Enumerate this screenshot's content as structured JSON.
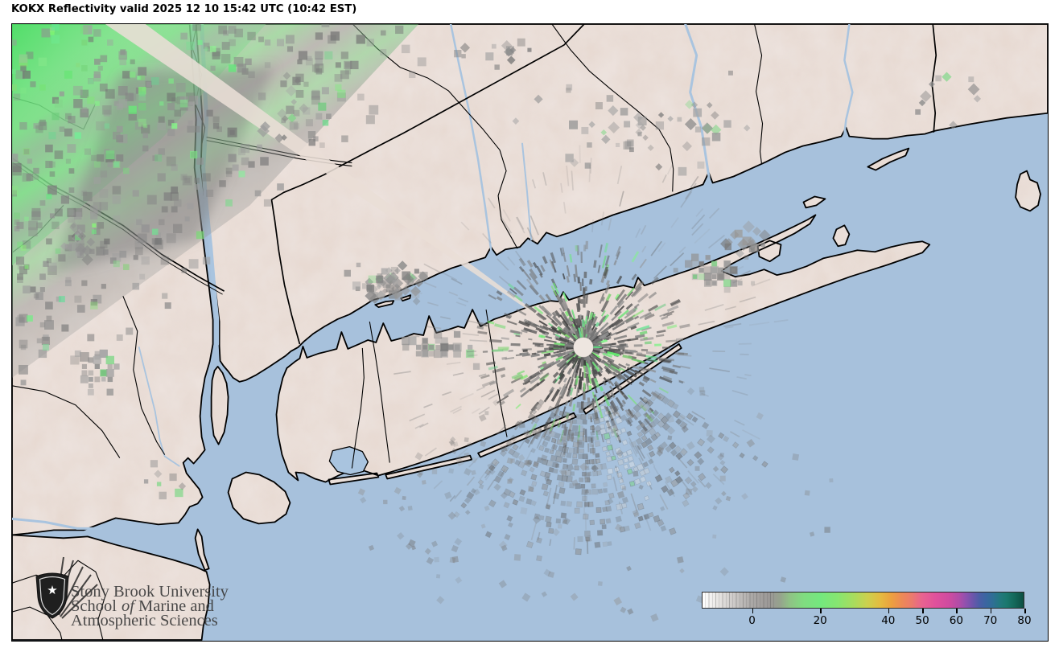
{
  "title": "KOKX Reflectivity valid 2025 12 10 15:42 UTC (10:42 EST)",
  "radar": {
    "station": "KOKX",
    "product": "Reflectivity",
    "valid_utc": "2025 12 10 15:42 UTC",
    "valid_local": "10:42 EST"
  },
  "logo": {
    "line1": "Stony Brook University",
    "line2_pre": "School",
    "line2_italic": "of",
    "line2_post": "Marine and",
    "line3": "Atmospheric Sciences"
  },
  "colorbar": {
    "min": -14.8,
    "max": 80,
    "ticks": [
      0,
      20,
      40,
      50,
      60,
      70,
      80
    ],
    "stops": [
      {
        "v": -14.8,
        "c": "#ffffff"
      },
      {
        "v": -11,
        "c": "#eceae8"
      },
      {
        "v": -5,
        "c": "#c9c6c4"
      },
      {
        "v": 0,
        "c": "#aaa7a5"
      },
      {
        "v": 5,
        "c": "#9b9896"
      },
      {
        "v": 8,
        "c": "#96a28d"
      },
      {
        "v": 11,
        "c": "#8fc285"
      },
      {
        "v": 15,
        "c": "#80dc80"
      },
      {
        "v": 20,
        "c": "#74e87e"
      },
      {
        "v": 25,
        "c": "#86e671"
      },
      {
        "v": 30,
        "c": "#a9dc5d"
      },
      {
        "v": 34,
        "c": "#cdd04d"
      },
      {
        "v": 38,
        "c": "#e6b93f"
      },
      {
        "v": 41,
        "c": "#eca03f"
      },
      {
        "v": 44,
        "c": "#ec8a55"
      },
      {
        "v": 47,
        "c": "#eb7a6d"
      },
      {
        "v": 50,
        "c": "#e86390"
      },
      {
        "v": 54,
        "c": "#e0519c"
      },
      {
        "v": 58,
        "c": "#cf4ba0"
      },
      {
        "v": 61,
        "c": "#b04da8"
      },
      {
        "v": 63,
        "c": "#8e51af"
      },
      {
        "v": 65,
        "c": "#6d55ab"
      },
      {
        "v": 67,
        "c": "#4b5ea6"
      },
      {
        "v": 69,
        "c": "#3a66a0"
      },
      {
        "v": 71,
        "c": "#2e6f94"
      },
      {
        "v": 73,
        "c": "#23787e"
      },
      {
        "v": 75,
        "c": "#1b786e"
      },
      {
        "v": 77,
        "c": "#156a5c"
      },
      {
        "v": 80,
        "c": "#0d4f42"
      }
    ]
  },
  "palette": {
    "water": "#a7c1dc",
    "land": "#ece2dd",
    "relief": "#c2a190",
    "coast": "#000000",
    "river": "#a9c4df",
    "precip_green_bright": "#4ade64",
    "precip_green_light": "#9ae8a4",
    "clutter_gray_dark": "#4c4c4c",
    "clutter_gray_light": "#a0a0a0",
    "fan_gray": "#6f6f6f"
  }
}
